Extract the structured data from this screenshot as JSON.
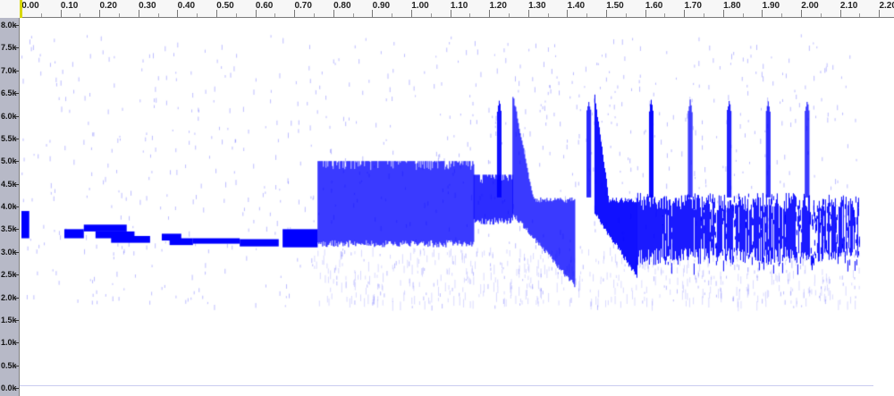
{
  "timeline": {
    "labels": [
      "0.00",
      "0.10",
      "0.20",
      "0.30",
      "0.40",
      "0.50",
      "0.60",
      "0.70",
      "0.80",
      "0.90",
      "1.00",
      "1.10",
      "1.20",
      "1.30",
      "1.40",
      "1.50",
      "1.60",
      "1.70",
      "1.80",
      "1.90",
      "2.00",
      "2.10",
      "2.20"
    ],
    "start_seconds": 0,
    "step_seconds": 0.1,
    "play_position_seconds": 0
  },
  "frequency_axis": {
    "labels": [
      "8.0k",
      "7.5k",
      "7.0k",
      "6.5k",
      "6.0k",
      "5.5k",
      "5.0k",
      "4.5k",
      "4.0k",
      "3.5k",
      "3.0k",
      "2.5k",
      "2.0k",
      "1.5k",
      "1.0k",
      "0.5k",
      "0.0k"
    ],
    "max_hz": 8000,
    "min_hz": 0
  },
  "spectrogram": {
    "energy_color": "#0000ff",
    "background_color": "#ffffff",
    "tonal_segments": [
      {
        "t0": 0.0,
        "t1": 0.02,
        "f0": 3300,
        "f1": 3900
      },
      {
        "t0": 0.11,
        "t1": 0.16,
        "f0": 3300,
        "f1": 3500
      },
      {
        "t0": 0.16,
        "t1": 0.27,
        "f0": 3450,
        "f1": 3600
      },
      {
        "t0": 0.19,
        "t1": 0.29,
        "f0": 3300,
        "f1": 3450
      },
      {
        "t0": 0.23,
        "t1": 0.33,
        "f0": 3200,
        "f1": 3350
      },
      {
        "t0": 0.36,
        "t1": 0.41,
        "f0": 3250,
        "f1": 3400
      },
      {
        "t0": 0.38,
        "t1": 0.44,
        "f0": 3150,
        "f1": 3300
      },
      {
        "t0": 0.44,
        "t1": 0.56,
        "f0": 3180,
        "f1": 3300
      },
      {
        "t0": 0.56,
        "t1": 0.66,
        "f0": 3120,
        "f1": 3280
      },
      {
        "t0": 0.67,
        "t1": 0.76,
        "f0": 3100,
        "f1": 3500
      }
    ],
    "broadband_bursts": [
      {
        "t0": 0.76,
        "t1": 1.16,
        "f0": 3100,
        "f1": 5000
      },
      {
        "t0": 1.16,
        "t1": 1.26,
        "f0": 3600,
        "f1": 4700
      }
    ],
    "downsweeps": [
      {
        "t0": 1.26,
        "t1": 1.42,
        "f_high": 6500,
        "f_low": 2300
      },
      {
        "t0": 1.47,
        "t1": 1.58,
        "f_high": 6500,
        "f_low": 2500
      }
    ],
    "spikes_seconds": [
      1.22,
      1.45,
      1.61,
      1.71,
      1.81,
      1.91,
      2.01
    ],
    "trailing_noise": {
      "t0": 1.58,
      "t1": 2.15,
      "f0": 2700,
      "f1": 4300
    }
  }
}
